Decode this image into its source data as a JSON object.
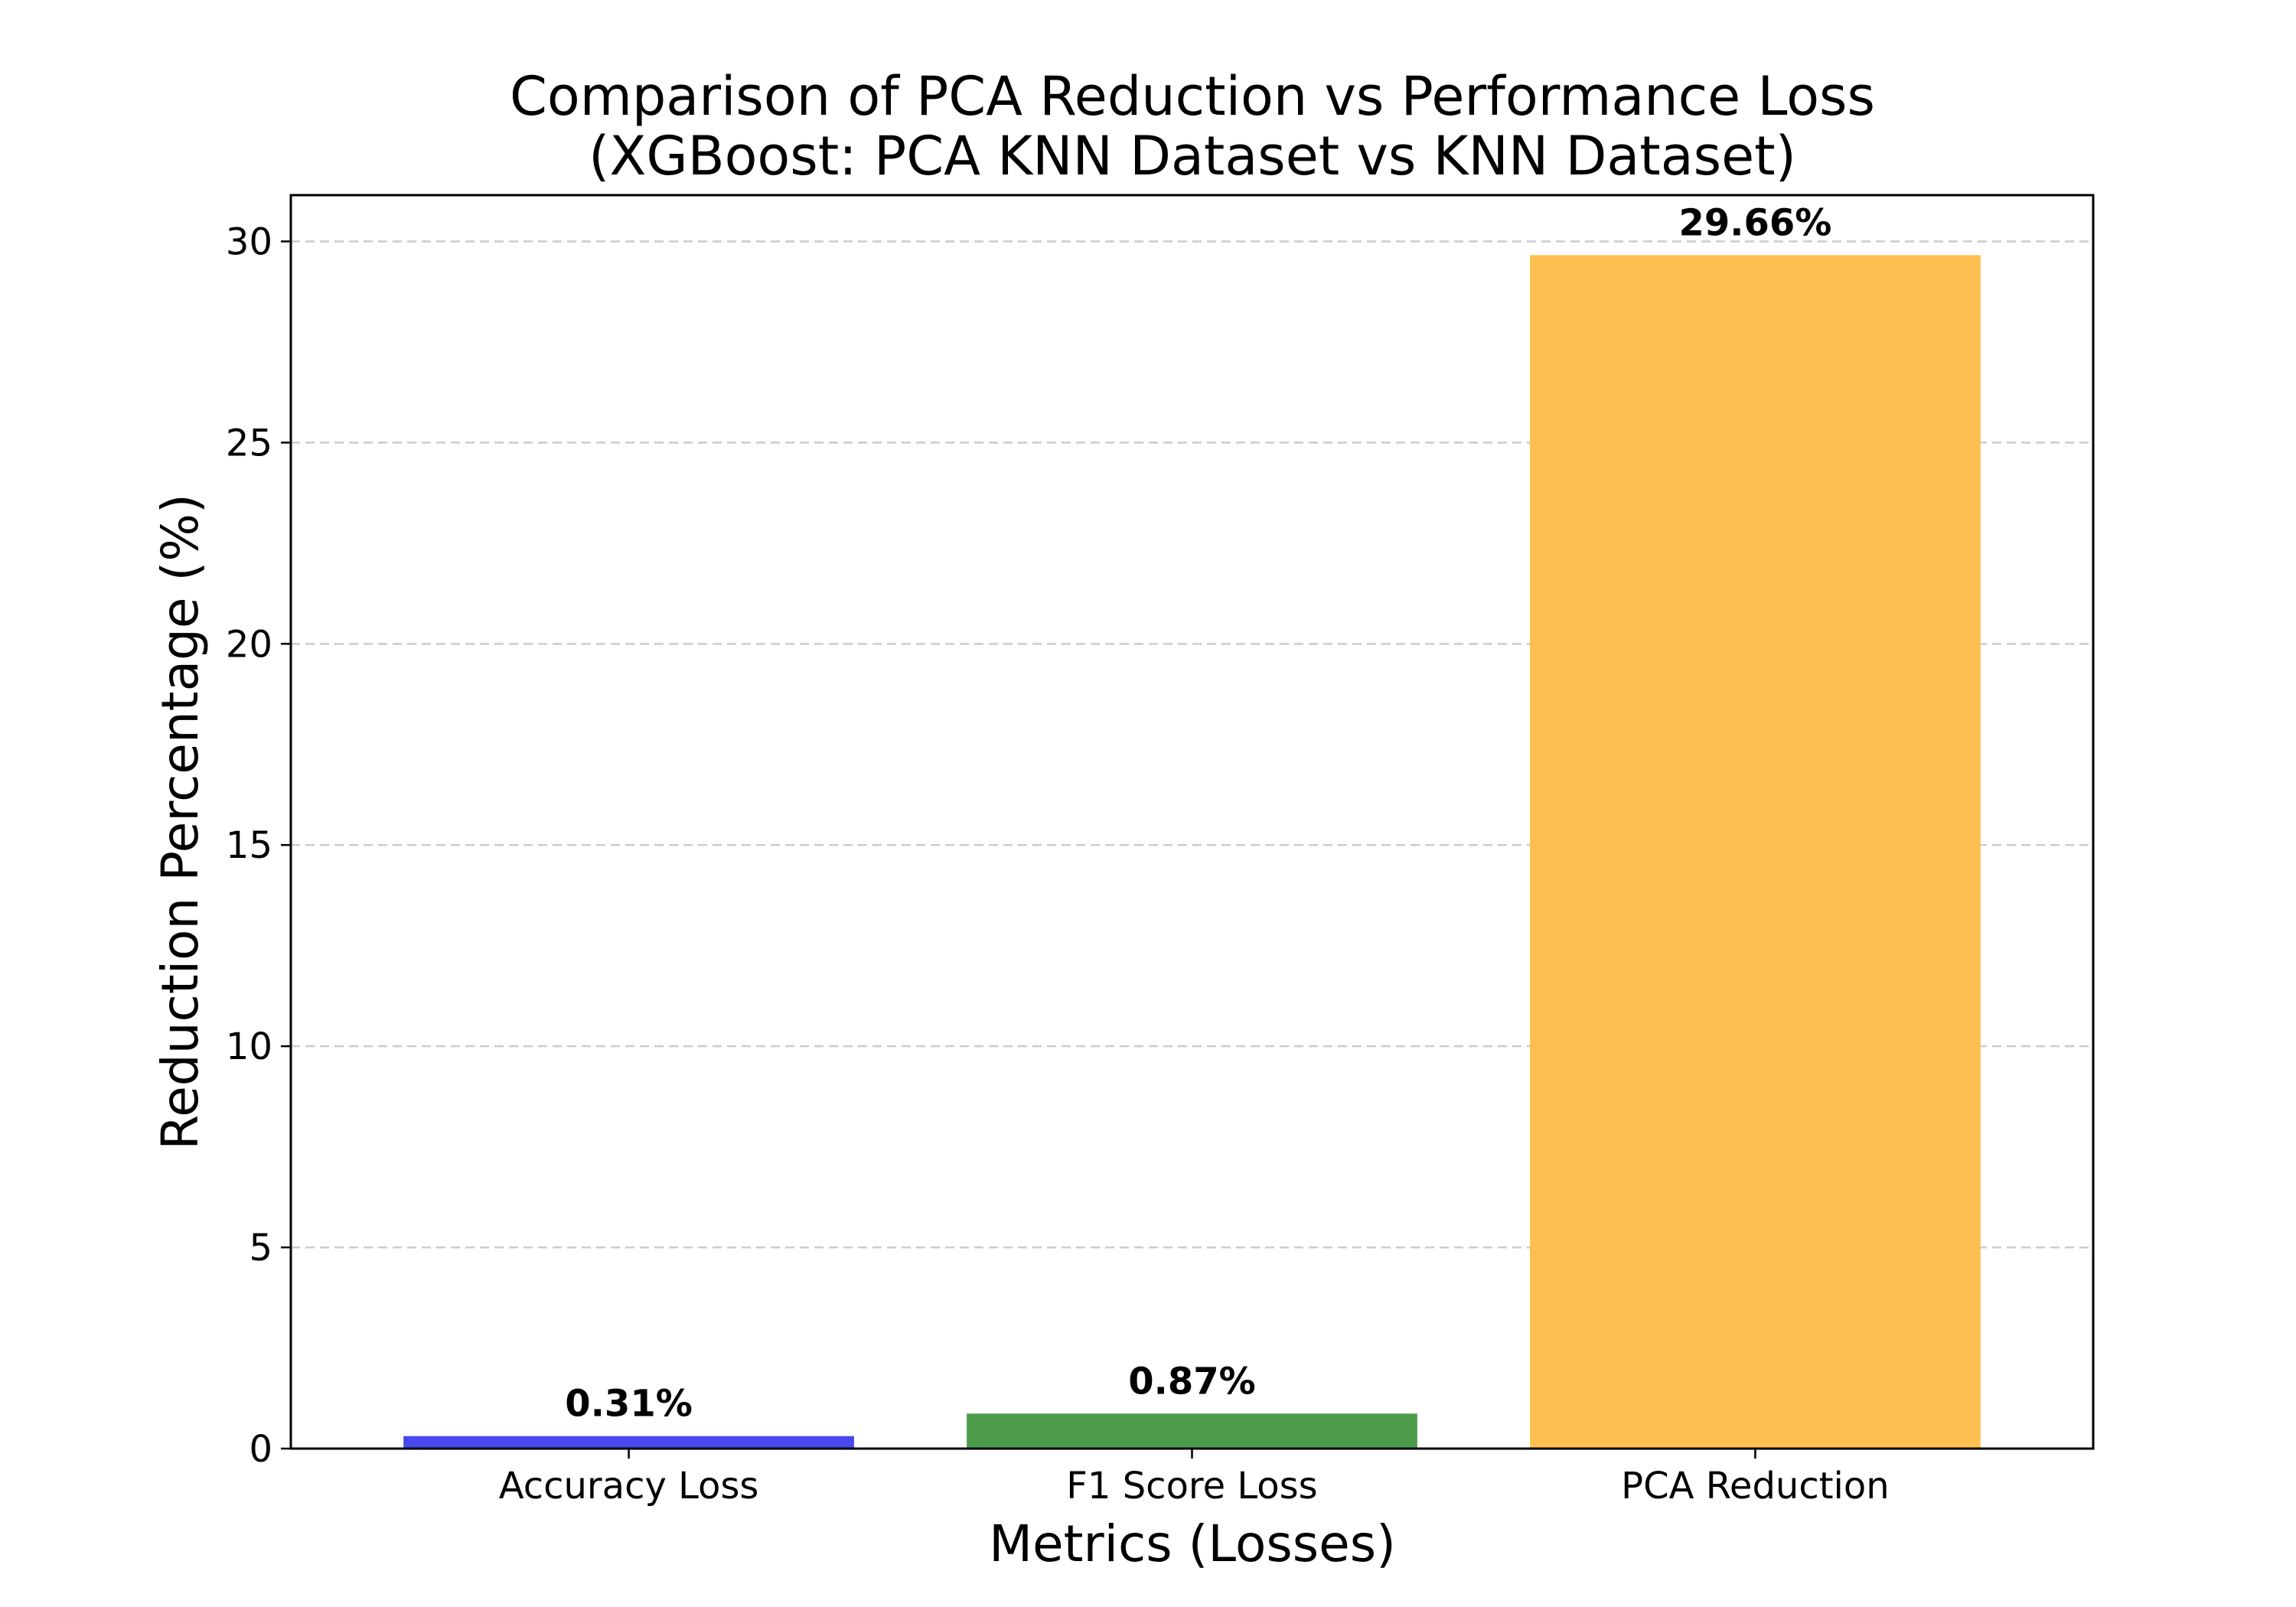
{
  "chart_data": {
    "type": "bar",
    "title": [
      "Comparison of PCA Reduction vs Performance Loss",
      "(XGBoost: PCA KNN Dataset vs KNN Dataset)"
    ],
    "xlabel": "Metrics (Losses)",
    "ylabel": "Reduction Percentage (%)",
    "categories": [
      "Accuracy Loss",
      "F1 Score Loss",
      "PCA Reduction"
    ],
    "values": [
      0.31,
      0.87,
      29.66
    ],
    "data_labels": [
      "0.31%",
      "0.87%",
      "29.66%"
    ],
    "colors": [
      "#4848ee",
      "#4c9c4c",
      "#fdbf50"
    ],
    "ylim": [
      0,
      31.15
    ],
    "yticks": [
      0,
      5,
      10,
      15,
      20,
      25,
      30
    ],
    "grid": "y-dashed"
  }
}
